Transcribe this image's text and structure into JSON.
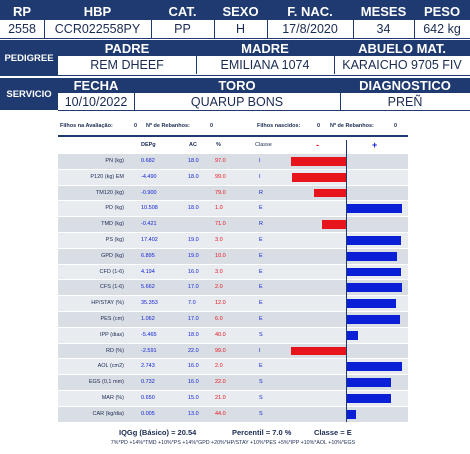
{
  "top_header": {
    "labels": [
      "RP",
      "HBP",
      "CAT.",
      "SEXO",
      "F. NAC.",
      "MESES",
      "PESO"
    ],
    "values": [
      "2558",
      "CCR022558PY",
      "PP",
      "H",
      "17/8/2020",
      "34",
      "642 kg"
    ]
  },
  "pedigree": {
    "side_label": "PEDIGREE",
    "labels": [
      "PADRE",
      "MADRE",
      "ABUELO MAT."
    ],
    "values": [
      "REM DHEEF",
      "EMILIANA 1074",
      "KARAICHO 9705 FIV"
    ]
  },
  "servicio": {
    "side_label": "SERVICIO",
    "labels": [
      "FECHA",
      "TORO",
      "DIAGNOSTICO"
    ],
    "values": [
      "10/10/2022",
      "QUARUP BONS",
      "PREÑ"
    ]
  },
  "epg_info": {
    "filhos_avaliacao_label": "Filhos na Avaliação:",
    "filhos_avaliacao_value": "0",
    "rebanhos1_label": "Nº de Rebanhos:",
    "rebanhos1_value": "0",
    "filhos_nascidos_label": "Filhos nascidos:",
    "filhos_nascidos_value": "0",
    "rebanhos2_label": "Nº de Rebanhos:",
    "rebanhos2_value": "0"
  },
  "table_header": {
    "depg": "DEPg",
    "ac": "AC",
    "pct": "%",
    "classe": "Classe",
    "minus": "-",
    "plus": "+"
  },
  "chart_data": {
    "type": "bar",
    "categories": [
      "PN (kg)",
      "P120 (kg) EM",
      "TM120 (kg)",
      "PD (kg)",
      "TMD (kg)",
      "PS (kg)",
      "GPD (kg)",
      "CFD (1-6)",
      "CFS (1-6)",
      "HP/STAY (%)",
      "PES (cm)",
      "IPP (dias)",
      "RD (%)",
      "AOL (cm2)",
      "EGS (0,1 mm)",
      "MAR (%)",
      "CAR (kg/dia)"
    ],
    "depg": [
      "0.682",
      "-4.490",
      "-0.900",
      "10.508",
      "-0.421",
      "17.402",
      "6.895",
      "4.194",
      "5.662",
      "35.353",
      "1.062",
      "-5.465",
      "-2.591",
      "2.743",
      "0.732",
      "0.650",
      "0.005"
    ],
    "ac": [
      "18.0",
      "18.0",
      "",
      "18.0",
      "",
      "19.0",
      "19.0",
      "16.0",
      "17.0",
      "7.0",
      "17.0",
      "18.0",
      "22.0",
      "16.0",
      "16.0",
      "15.0",
      "13.0"
    ],
    "pct": [
      "97.0",
      "99.0",
      "79.0",
      "1.0",
      "71.0",
      "3.0",
      "10.0",
      "3.0",
      "2.0",
      "12.0",
      "6.0",
      "40.0",
      "99.0",
      "2.0",
      "22.0",
      "21.0",
      "44.0"
    ],
    "classe": [
      "I",
      "I",
      "R",
      "E",
      "R",
      "E",
      "E",
      "E",
      "E",
      "E",
      "E",
      "S",
      "I",
      "E",
      "S",
      "S",
      "S"
    ],
    "values": [
      -99,
      -97,
      -58,
      99,
      -42,
      97,
      90,
      97,
      98,
      88,
      94,
      20,
      -99,
      98,
      78,
      79,
      16
    ],
    "series_colors": {
      "negative": "#e8141b",
      "positive": "#0b1fd6"
    },
    "xlim": [
      -100,
      100
    ]
  },
  "summary": {
    "iqg": "IQGg (Básico) = 20.54",
    "percentil": "Percentil = 7.0 %",
    "classe": "Classe = E",
    "formula": "7%*PD +14%*TMD +10%*PS +14%*GPD +20%*HP/STAY +10%*PES +5%*IPP +10%*AOL +10%*EGS"
  }
}
